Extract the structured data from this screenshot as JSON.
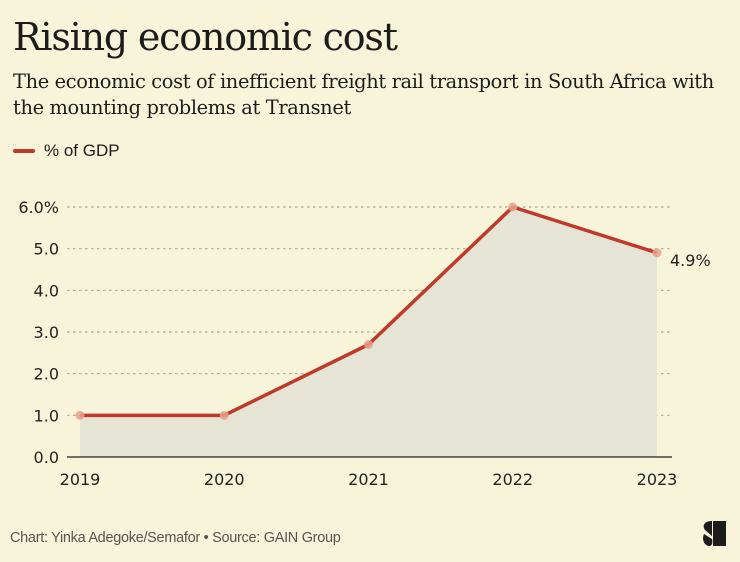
{
  "header": {
    "title": "Rising economic cost",
    "subtitle": "The economic cost of inefficient freight rail transport in South Africa with the mounting problems at Transnet"
  },
  "legend": {
    "label": "% of GDP",
    "color": "#c0392b"
  },
  "footer": {
    "credit": "Chart: Yinka Adegoke/Semafor • Source: GAIN Group"
  },
  "logo": {
    "icon": "semafor-logo-icon"
  },
  "colors": {
    "line": "#c0392b",
    "marker": "#e8a08a",
    "area": "#e6e4d4",
    "grid": "#a9a692",
    "axis": "#222222",
    "background": "#f8f4d9"
  },
  "chart_data": {
    "type": "area",
    "title": "Rising economic cost",
    "subtitle": "The economic cost of inefficient freight rail transport in South Africa with the mounting problems at Transnet",
    "xlabel": "",
    "ylabel": "% of GDP",
    "categories": [
      "2019",
      "2020",
      "2021",
      "2022",
      "2023"
    ],
    "series": [
      {
        "name": "% of GDP",
        "values": [
          1.0,
          1.0,
          2.7,
          6.0,
          4.9
        ]
      }
    ],
    "ylim": [
      0,
      6
    ],
    "yticks": [
      0,
      1,
      2,
      3,
      4,
      5,
      6
    ],
    "ytick_labels": [
      "0.0",
      "1.0",
      "2.0",
      "3.0",
      "4.0",
      "5.0",
      "6.0%"
    ],
    "grid": true,
    "legend_position": "top-left",
    "annotations": [
      {
        "category": "2023",
        "text": "4.9%"
      }
    ]
  }
}
